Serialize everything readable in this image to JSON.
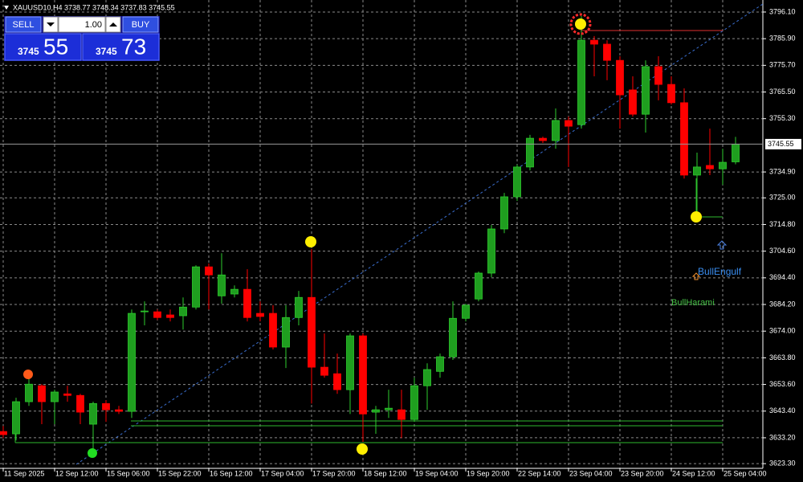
{
  "header": {
    "symbol_info": "XAUUSD10,H4  3738.77 3748.34 3737.83 3745.55"
  },
  "trade_panel": {
    "sell": "SELL",
    "buy": "BUY",
    "lot": "1.00",
    "bid_big": "3745",
    "bid_small": "55",
    "ask_big": "3745",
    "ask_small": "73"
  },
  "chart_data": {
    "type": "candlestick",
    "categories": [
      "11 Sep 2025",
      null,
      null,
      null,
      "12 Sep 12:00",
      null,
      null,
      null,
      "15 Sep 06:00",
      null,
      null,
      null,
      "15 Sep 22:00",
      null,
      null,
      null,
      "16 Sep 12:00",
      null,
      null,
      null,
      "17 Sep 04:00",
      null,
      null,
      null,
      "17 Sep 20:00",
      null,
      null,
      null,
      "18 Sep 12:00",
      null,
      null,
      null,
      "19 Sep 04:00",
      null,
      null,
      null,
      "19 Sep 20:00",
      null,
      null,
      null,
      "22 Sep 14:00",
      null,
      null,
      null,
      "23 Sep 04:00",
      null,
      null,
      null,
      "23 Sep 20:00",
      null,
      null,
      null,
      "24 Sep 12:00",
      null,
      null,
      null,
      "25 Sep 04:00",
      null
    ],
    "open": [
      3635.6,
      3634.7,
      3647.0,
      3653.1,
      3647.0,
      3650.0,
      3649.4,
      3638.4,
      3646.3,
      3643.9,
      3643.3,
      3681.4,
      3681.4,
      3680.2,
      3679.9,
      3683.2,
      3698.6,
      3687.5,
      3688.2,
      3690.0,
      3680.8,
      3680.8,
      3667.9,
      3679.2,
      3686.9,
      3660.2,
      3657.7,
      3651.6,
      3672.2,
      3643.0,
      3643.9,
      3643.9,
      3640.2,
      3653.1,
      3658.6,
      3664.2,
      3678.9,
      3686.3,
      3696.2,
      3713.1,
      3725.4,
      3736.8,
      3747.8,
      3746.9,
      3754.6,
      3753.0,
      3785.3,
      3783.8,
      3777.6,
      3766.3,
      3757.0,
      3775.2,
      3768.4,
      3761.4,
      3733.7,
      3737.4,
      3736.1,
      3738.77
    ],
    "high": [
      3637.7,
      3648.5,
      3656.2,
      3653.7,
      3651.6,
      3653.1,
      3650.0,
      3647.0,
      3647.6,
      3645.4,
      3682.3,
      3685.4,
      3682.3,
      3682.3,
      3686.9,
      3699.2,
      3699.9,
      3703.8,
      3691.5,
      3697.7,
      3685.4,
      3683.9,
      3683.9,
      3689.4,
      3705.4,
      3673.1,
      3665.4,
      3673.1,
      3673.1,
      3645.4,
      3651.6,
      3651.6,
      3656.2,
      3661.7,
      3665.4,
      3685.4,
      3684.5,
      3696.8,
      3714.6,
      3726.9,
      3737.7,
      3749.1,
      3748.4,
      3759.2,
      3756.1,
      3794.6,
      3786.9,
      3785.3,
      3779.2,
      3771.5,
      3777.6,
      3779.2,
      3771.5,
      3766.9,
      3742.3,
      3751.5,
      3743.8,
      3748.34
    ],
    "low": [
      3633.1,
      3632.2,
      3645.4,
      3638.4,
      3638.4,
      3647.0,
      3638.4,
      3627.0,
      3639.3,
      3642.3,
      3640.8,
      3676.2,
      3678.3,
      3677.7,
      3674.6,
      3682.3,
      3682.3,
      3684.5,
      3686.9,
      3677.7,
      3677.7,
      3667.0,
      3659.9,
      3676.2,
      3646.3,
      3656.2,
      3650.0,
      3642.3,
      3631.6,
      3634.7,
      3640.8,
      3633.1,
      3639.3,
      3643.9,
      3656.2,
      3663.0,
      3677.7,
      3685.4,
      3694.6,
      3711.5,
      3723.8,
      3735.5,
      3746.0,
      3743.8,
      3736.8,
      3751.5,
      3771.5,
      3770.0,
      3751.5,
      3756.1,
      3750.0,
      3762.3,
      3760.7,
      3732.4,
      3719.2,
      3733.7,
      3730.0,
      3737.83
    ],
    "close": [
      3634.4,
      3647.0,
      3653.7,
      3647.0,
      3650.7,
      3649.4,
      3643.0,
      3646.3,
      3643.9,
      3643.3,
      3680.8,
      3681.7,
      3679.2,
      3679.2,
      3683.2,
      3698.6,
      3695.5,
      3695.5,
      3690.0,
      3679.2,
      3679.6,
      3667.9,
      3679.2,
      3686.9,
      3660.2,
      3657.1,
      3651.6,
      3672.2,
      3642.3,
      3643.9,
      3644.5,
      3640.2,
      3653.1,
      3659.3,
      3664.2,
      3678.9,
      3683.9,
      3696.2,
      3713.1,
      3725.4,
      3736.8,
      3747.8,
      3746.9,
      3754.6,
      3752.4,
      3785.3,
      3783.8,
      3777.6,
      3764.4,
      3757.0,
      3775.2,
      3768.4,
      3761.4,
      3733.7,
      3736.8,
      3736.1,
      3738.6,
      3745.55
    ],
    "up_color": "#1f9e1f",
    "down_color": "#ff0000",
    "ylim": [
      3621.5,
      3800.7
    ],
    "yticks": [
      {
        "value": 3796.1,
        "label": "3796.10"
      },
      {
        "value": 3785.9,
        "label": "3785.90"
      },
      {
        "value": 3775.7,
        "label": "3775.70"
      },
      {
        "value": 3765.5,
        "label": "3765.50"
      },
      {
        "value": 3755.3,
        "label": "3755.30"
      },
      {
        "value": 3734.9,
        "label": "3734.90"
      },
      {
        "value": 3725.0,
        "label": "3725.00"
      },
      {
        "value": 3714.8,
        "label": "3714.80"
      },
      {
        "value": 3704.6,
        "label": "3704.60"
      },
      {
        "value": 3694.4,
        "label": "3694.40"
      },
      {
        "value": 3684.2,
        "label": "3684.20"
      },
      {
        "value": 3674.0,
        "label": "3674.00"
      },
      {
        "value": 3663.8,
        "label": "3663.80"
      },
      {
        "value": 3653.6,
        "label": "3653.60"
      },
      {
        "value": 3643.4,
        "label": "3643.40"
      },
      {
        "value": 3633.2,
        "label": "3633.20"
      },
      {
        "value": 3623.3,
        "label": "3623.30"
      }
    ],
    "grid": true,
    "current_price": 3745.55,
    "annotations": [
      "BullEngulf",
      "BullHarami"
    ]
  }
}
